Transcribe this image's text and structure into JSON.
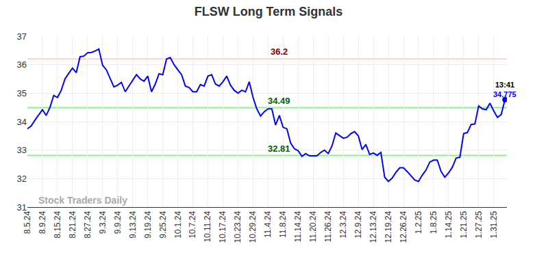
{
  "chart_data": {
    "type": "line",
    "title": "FLSW Long Term Signals",
    "categories": [
      "8.5.24",
      null,
      null,
      null,
      "8.9.24",
      null,
      null,
      null,
      "8.15.24",
      null,
      null,
      null,
      "8.21.24",
      null,
      null,
      null,
      "8.27.24",
      null,
      null,
      null,
      "9.3.24",
      null,
      null,
      null,
      "9.9.24",
      null,
      null,
      null,
      "9.13.24",
      null,
      null,
      null,
      "9.19.24",
      null,
      null,
      null,
      "9.25.24",
      null,
      null,
      null,
      "10.1.24",
      null,
      null,
      null,
      "10.7.24",
      null,
      null,
      null,
      "10.11.24",
      null,
      null,
      null,
      "10.17.24",
      null,
      null,
      null,
      "10.23.24",
      null,
      null,
      null,
      "10.29.24",
      null,
      null,
      null,
      "11.4.24",
      null,
      null,
      null,
      "11.8.24",
      null,
      null,
      null,
      "11.14.24",
      null,
      null,
      null,
      "11.20.24",
      null,
      null,
      null,
      "11.26.24",
      null,
      null,
      null,
      "12.3.24",
      null,
      null,
      null,
      "12.9.24",
      null,
      null,
      null,
      "12.13.24",
      null,
      null,
      null,
      "12.19.24",
      null,
      null,
      null,
      "12.26.24",
      null,
      null,
      null,
      "1.2.25",
      null,
      null,
      null,
      "1.8.25",
      null,
      null,
      null,
      "1.14.25",
      null,
      null,
      null,
      "1.21.25",
      null,
      null,
      null,
      "1.27.25",
      null,
      null,
      null,
      "1.31.25",
      null,
      null,
      null
    ],
    "values": [
      33.75,
      33.85,
      34.05,
      34.25,
      34.42,
      34.22,
      34.5,
      34.92,
      34.85,
      35.1,
      35.5,
      35.7,
      35.88,
      35.72,
      36.28,
      36.3,
      36.42,
      36.43,
      36.48,
      36.55,
      35.98,
      35.82,
      35.5,
      35.22,
      35.28,
      35.38,
      35.05,
      35.25,
      35.45,
      35.65,
      35.5,
      35.42,
      35.6,
      35.05,
      35.32,
      35.68,
      35.65,
      36.2,
      36.25,
      36.0,
      35.82,
      35.65,
      35.25,
      35.2,
      35.05,
      35.05,
      35.3,
      35.25,
      35.6,
      35.65,
      35.32,
      35.25,
      35.4,
      35.6,
      35.28,
      35.1,
      35.0,
      35.1,
      35.05,
      35.4,
      34.85,
      34.45,
      34.2,
      34.35,
      34.45,
      34.45,
      33.88,
      34.22,
      33.8,
      33.75,
      33.25,
      33.05,
      32.98,
      32.78,
      32.88,
      32.8,
      32.8,
      32.8,
      32.92,
      33.0,
      32.88,
      33.15,
      33.6,
      33.5,
      33.42,
      33.45,
      33.58,
      33.65,
      33.5,
      33.02,
      33.2,
      32.85,
      32.9,
      32.82,
      32.92,
      32.05,
      31.9,
      32.02,
      32.22,
      32.38,
      32.38,
      32.25,
      32.1,
      31.95,
      31.9,
      32.12,
      32.3,
      32.58,
      32.65,
      32.65,
      32.25,
      32.05,
      32.2,
      32.4,
      32.72,
      32.75,
      33.58,
      33.62,
      33.9,
      33.92,
      34.55,
      34.45,
      34.42,
      34.65,
      34.38,
      34.15,
      34.25,
      34.775
    ],
    "color": "#0000ff",
    "ylim": [
      31,
      37
    ],
    "yticks": [
      31,
      32,
      33,
      34,
      35,
      36,
      37
    ],
    "grid": true,
    "reference_lines": [
      {
        "value": 36.2,
        "label": "36.2",
        "color": "#ffcccc",
        "label_color": "#8b0000"
      },
      {
        "value": 34.49,
        "label": "34.49",
        "color": "#90ee90",
        "label_color": "#006400"
      },
      {
        "value": 32.81,
        "label": "32.81",
        "color": "#90ee90",
        "label_color": "#006400"
      }
    ],
    "last_point": {
      "label": "13:41"
    },
    "watermark": "Stock Traders Daily"
  }
}
